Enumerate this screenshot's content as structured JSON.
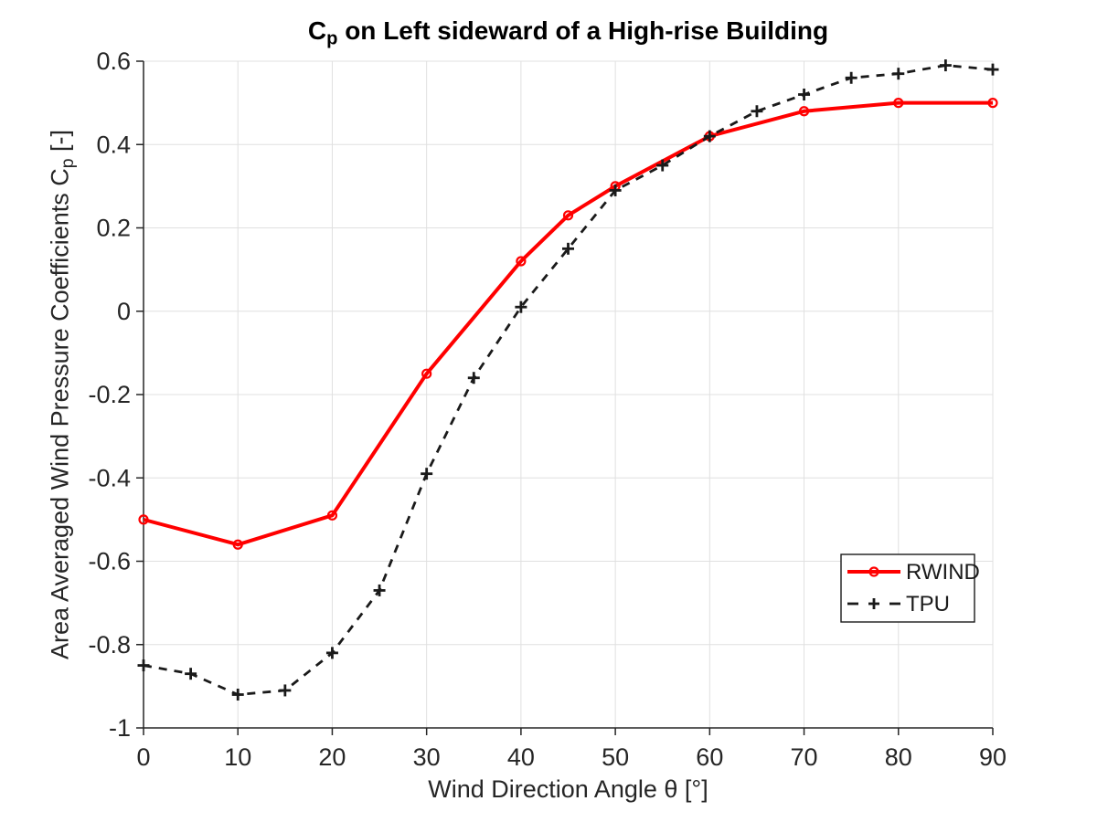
{
  "title": {
    "c": "C",
    "sub": "p",
    "rest": " on Left sideward of a High-rise Building"
  },
  "x_axis_label": {
    "text": "Wind Direction Angle θ [°]"
  },
  "y_axis_label": {
    "prefix": "Area Averaged Wind Pressure Coefficients C",
    "sub": "p",
    "suffix": " [-]"
  },
  "legend": {
    "entries": [
      "RWIND",
      "TPU"
    ],
    "position": "inside-right-middle"
  },
  "colors": {
    "background": "#ffffff",
    "grid": "#e0e0e0",
    "axis": "#262626",
    "title_text": "#000000",
    "rwind": "#ff0000",
    "tpu": "#1a1a1a",
    "legend_border": "#1a1a1a",
    "legend_background": "#ffffff"
  },
  "chart_data": {
    "type": "line",
    "title": "C_p on Left sideward of a High-rise Building",
    "xlabel": "Wind Direction Angle θ [°]",
    "ylabel": "Area Averaged Wind Pressure Coefficients C_p [-]",
    "xlim": [
      0,
      90
    ],
    "ylim": [
      -1,
      0.6
    ],
    "x_ticks": [
      0,
      10,
      20,
      30,
      40,
      50,
      60,
      70,
      80,
      90
    ],
    "x_tick_labels": [
      "0",
      "10",
      "20",
      "30",
      "40",
      "50",
      "60",
      "70",
      "80",
      "90"
    ],
    "y_ticks": [
      0.6,
      0.4,
      0.2,
      0,
      -0.2,
      -0.4,
      -0.6,
      -0.8,
      -1
    ],
    "y_tick_labels": [
      "0.6",
      "0.4",
      "0.2",
      "0",
      "-0.2",
      "-0.4",
      "-0.6",
      "-0.8",
      "-1"
    ],
    "grid": true,
    "legend_position": "inside-right-middle",
    "series": [
      {
        "name": "RWIND",
        "color": "#ff0000",
        "line_style": "solid",
        "marker": "circle",
        "x": [
          0,
          10,
          20,
          30,
          40,
          45,
          50,
          60,
          70,
          80,
          90
        ],
        "y": [
          -0.5,
          -0.56,
          -0.49,
          -0.15,
          0.12,
          0.23,
          0.3,
          0.42,
          0.48,
          0.5,
          0.5
        ]
      },
      {
        "name": "TPU",
        "color": "#1a1a1a",
        "line_style": "dashed",
        "marker": "plus",
        "x": [
          0,
          5,
          10,
          15,
          20,
          25,
          30,
          35,
          40,
          45,
          50,
          55,
          60,
          65,
          70,
          75,
          80,
          85,
          90
        ],
        "y": [
          -0.85,
          -0.87,
          -0.92,
          -0.91,
          -0.82,
          -0.67,
          -0.39,
          -0.16,
          0.01,
          0.15,
          0.29,
          0.35,
          0.42,
          0.48,
          0.52,
          0.56,
          0.57,
          0.59,
          0.58
        ]
      }
    ]
  }
}
